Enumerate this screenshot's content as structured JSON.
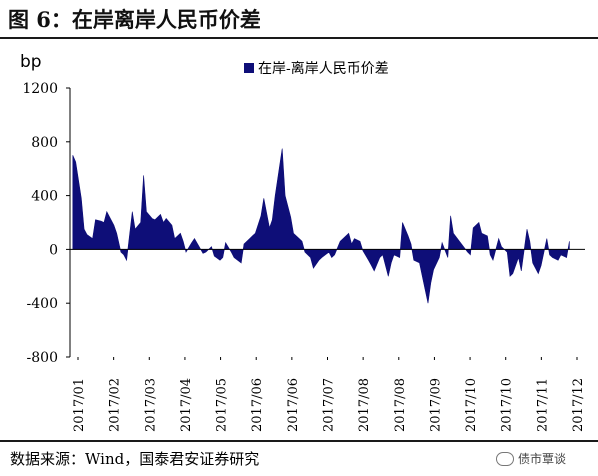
{
  "header": {
    "title": "图 6：在岸离岸人民币价差"
  },
  "footer": {
    "source": "数据来源：Wind，国泰君安证券研究",
    "watermark": "债市覃谈"
  },
  "chart_data": {
    "type": "area",
    "title": "",
    "xlabel": "",
    "ylabel": "bp",
    "ylim": [
      -800,
      1200
    ],
    "yticks": [
      -800,
      -400,
      0,
      400,
      800,
      1200
    ],
    "grid": false,
    "legend": {
      "position": "top-center",
      "entries": [
        "在岸-离岸人民币价差"
      ]
    },
    "x_tick_labels": [
      "2017/01",
      "2017/02",
      "2017/03",
      "2017/04",
      "2017/05",
      "2017/06",
      "2017/06",
      "2017/07",
      "2017/08",
      "2017/08",
      "2017/09",
      "2017/10",
      "2017/10",
      "2017/11",
      "2017/12"
    ],
    "colors": {
      "series": "#0e0e78"
    },
    "series": [
      {
        "name": "在岸-离岸人民币价差",
        "points": [
          [
            "2017/01/03",
            700
          ],
          [
            "2017/01/05",
            650
          ],
          [
            "2017/01/09",
            380
          ],
          [
            "2017/01/11",
            150
          ],
          [
            "2017/01/13",
            110
          ],
          [
            "2017/01/17",
            80
          ],
          [
            "2017/01/19",
            220
          ],
          [
            "2017/01/23",
            210
          ],
          [
            "2017/01/25",
            200
          ],
          [
            "2017/01/27",
            280
          ],
          [
            "2017/02/01",
            180
          ],
          [
            "2017/02/03",
            120
          ],
          [
            "2017/02/06",
            -20
          ],
          [
            "2017/02/08",
            -40
          ],
          [
            "2017/02/10",
            -80
          ],
          [
            "2017/02/14",
            280
          ],
          [
            "2017/02/16",
            150
          ],
          [
            "2017/02/20",
            200
          ],
          [
            "2017/02/22",
            550
          ],
          [
            "2017/02/24",
            280
          ],
          [
            "2017/02/28",
            230
          ],
          [
            "2017/03/02",
            220
          ],
          [
            "2017/03/06",
            260
          ],
          [
            "2017/03/08",
            200
          ],
          [
            "2017/03/10",
            230
          ],
          [
            "2017/03/14",
            180
          ],
          [
            "2017/03/16",
            80
          ],
          [
            "2017/03/20",
            120
          ],
          [
            "2017/03/22",
            60
          ],
          [
            "2017/03/24",
            -20
          ],
          [
            "2017/03/28",
            50
          ],
          [
            "2017/03/30",
            80
          ],
          [
            "2017/04/05",
            -30
          ],
          [
            "2017/04/07",
            -20
          ],
          [
            "2017/04/11",
            20
          ],
          [
            "2017/04/13",
            -50
          ],
          [
            "2017/04/17",
            -80
          ],
          [
            "2017/04/19",
            -60
          ],
          [
            "2017/04/21",
            50
          ],
          [
            "2017/04/25",
            -20
          ],
          [
            "2017/04/27",
            -60
          ],
          [
            "2017/05/02",
            -100
          ],
          [
            "2017/05/04",
            40
          ],
          [
            "2017/05/08",
            80
          ],
          [
            "2017/05/10",
            100
          ],
          [
            "2017/05/12",
            120
          ],
          [
            "2017/05/16",
            250
          ],
          [
            "2017/05/18",
            380
          ],
          [
            "2017/05/22",
            160
          ],
          [
            "2017/05/24",
            220
          ],
          [
            "2017/05/26",
            400
          ],
          [
            "2017/05/31",
            750
          ],
          [
            "2017/06/02",
            400
          ],
          [
            "2017/06/06",
            240
          ],
          [
            "2017/06/08",
            120
          ],
          [
            "2017/06/12",
            80
          ],
          [
            "2017/06/14",
            60
          ],
          [
            "2017/06/16",
            -20
          ],
          [
            "2017/06/20",
            -60
          ],
          [
            "2017/06/22",
            -140
          ],
          [
            "2017/06/26",
            -80
          ],
          [
            "2017/06/28",
            -60
          ],
          [
            "2017/07/03",
            -20
          ],
          [
            "2017/07/05",
            -60
          ],
          [
            "2017/07/07",
            -40
          ],
          [
            "2017/07/11",
            60
          ],
          [
            "2017/07/13",
            80
          ],
          [
            "2017/07/17",
            120
          ],
          [
            "2017/07/19",
            40
          ],
          [
            "2017/07/21",
            80
          ],
          [
            "2017/07/25",
            60
          ],
          [
            "2017/07/27",
            -10
          ],
          [
            "2017/07/31",
            -80
          ],
          [
            "2017/08/02",
            -120
          ],
          [
            "2017/08/04",
            -160
          ],
          [
            "2017/08/08",
            -60
          ],
          [
            "2017/08/10",
            -40
          ],
          [
            "2017/08/14",
            -200
          ],
          [
            "2017/08/16",
            -100
          ],
          [
            "2017/08/18",
            -40
          ],
          [
            "2017/08/22",
            -60
          ],
          [
            "2017/08/24",
            200
          ],
          [
            "2017/08/28",
            100
          ],
          [
            "2017/08/30",
            40
          ],
          [
            "2017/09/01",
            -80
          ],
          [
            "2017/09/05",
            -100
          ],
          [
            "2017/09/07",
            -200
          ],
          [
            "2017/09/11",
            -400
          ],
          [
            "2017/09/13",
            -250
          ],
          [
            "2017/09/15",
            -150
          ],
          [
            "2017/09/19",
            -60
          ],
          [
            "2017/09/21",
            50
          ],
          [
            "2017/09/25",
            -60
          ],
          [
            "2017/09/27",
            250
          ],
          [
            "2017/09/29",
            120
          ],
          [
            "2017/10/09",
            -20
          ],
          [
            "2017/10/11",
            -40
          ],
          [
            "2017/10/13",
            160
          ],
          [
            "2017/10/17",
            200
          ],
          [
            "2017/10/19",
            120
          ],
          [
            "2017/10/23",
            100
          ],
          [
            "2017/10/25",
            -40
          ],
          [
            "2017/10/27",
            -80
          ],
          [
            "2017/10/31",
            80
          ],
          [
            "2017/11/02",
            20
          ],
          [
            "2017/11/06",
            -20
          ],
          [
            "2017/11/08",
            -200
          ],
          [
            "2017/11/10",
            -180
          ],
          [
            "2017/11/14",
            -60
          ],
          [
            "2017/11/16",
            -160
          ],
          [
            "2017/11/20",
            150
          ],
          [
            "2017/11/22",
            60
          ],
          [
            "2017/11/24",
            -100
          ],
          [
            "2017/11/28",
            -180
          ],
          [
            "2017/11/30",
            -120
          ],
          [
            "2017/12/04",
            80
          ],
          [
            "2017/12/06",
            -40
          ],
          [
            "2017/12/08",
            -60
          ],
          [
            "2017/12/12",
            -80
          ],
          [
            "2017/12/14",
            -40
          ],
          [
            "2017/12/18",
            -60
          ],
          [
            "2017/12/20",
            60
          ]
        ]
      }
    ]
  }
}
